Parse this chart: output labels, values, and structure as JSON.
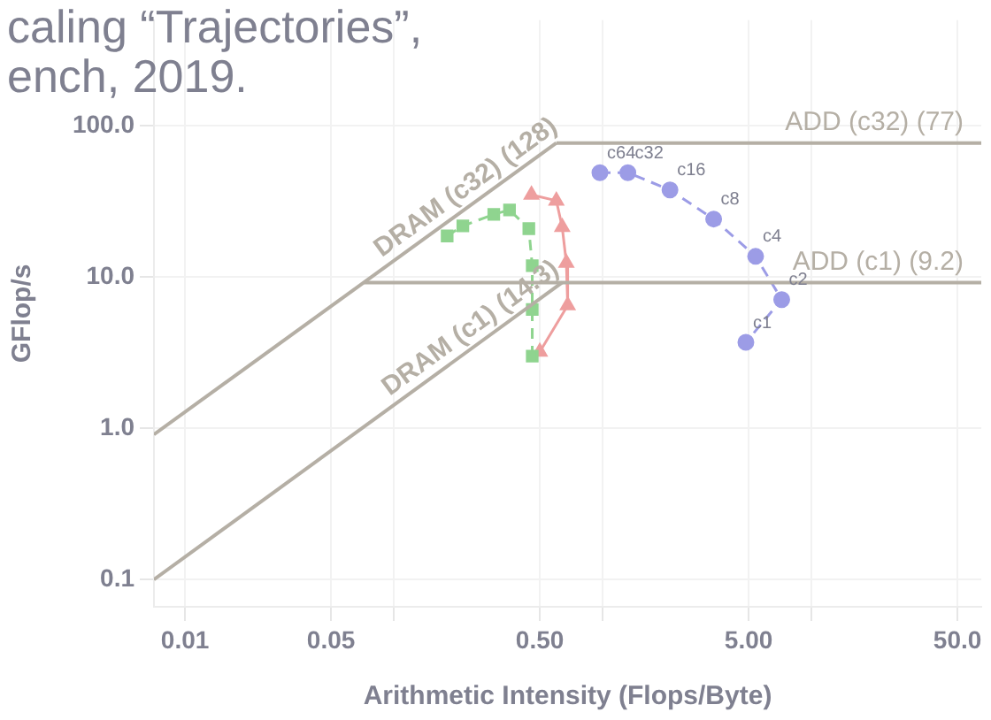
{
  "chart_data": {
    "type": "line",
    "xlabel": "Arithmetic Intensity (Flops/Byte)",
    "ylabel": "GFlop/s",
    "log": "xy",
    "grid": true,
    "legend": false,
    "xlim": [
      0.0071,
      65
    ],
    "ylim": [
      0.066,
      500
    ],
    "xticks": [
      0.01,
      0.05,
      {
        "value": 0.1,
        "label": null
      },
      {
        "value": 0.5,
        "label": "0.50"
      },
      {
        "value": 1,
        "label": null
      },
      {
        "value": 5,
        "label": "5.00"
      },
      {
        "value": 10,
        "label": null
      },
      {
        "value": 50,
        "label": "50.0"
      }
    ],
    "yticks": [
      0.1,
      {
        "value": 1,
        "label": "1.0"
      },
      {
        "value": 10,
        "label": "10.0"
      },
      {
        "value": 100,
        "label": "100.0"
      }
    ],
    "series": [
      {
        "name": "DRAM (c32) (128)",
        "color": "#b5afa5",
        "marker": "none",
        "line_style": "solid",
        "x": [
          0.0071,
          0.6
        ],
        "values": [
          0.91,
          77
        ]
      },
      {
        "name": "ADD (c32) (77)",
        "color": "#b5afa5",
        "marker": "none",
        "line_style": "solid",
        "x": [
          0.6,
          65
        ],
        "values": [
          77,
          77
        ]
      },
      {
        "name": "DRAM (c1) (14.3)",
        "color": "#b5afa5",
        "marker": "none",
        "line_style": "solid",
        "x": [
          0.0071,
          0.64
        ],
        "values": [
          0.1,
          9.2
        ]
      },
      {
        "name": "ADD (c1) (9.2)",
        "color": "#b5afa5",
        "marker": "none",
        "line_style": "solid",
        "x": [
          0.072,
          65
        ],
        "values": [
          9.2,
          9.2
        ]
      },
      {
        "color": "#9c9ce6",
        "marker": "circle",
        "line_style": "dashed",
        "x": [
          0.97,
          1.32,
          2.1,
          3.4,
          5.4,
          7.2,
          4.85
        ],
        "values": [
          49,
          49,
          37.7,
          24.2,
          13.7,
          7.1,
          3.7
        ]
      },
      {
        "color": "#8fd48f",
        "marker": "square",
        "line_style": "dashed",
        "x": [
          0.18,
          0.214,
          0.301,
          0.358,
          0.443,
          0.46,
          0.46,
          0.46
        ],
        "values": [
          18.7,
          21.8,
          26,
          27.8,
          20.9,
          11.9,
          6.1,
          3.0
        ]
      },
      {
        "color": "#ee9e9e",
        "marker": "triangle",
        "line_style": "solid",
        "x": [
          0.456,
          0.6,
          0.64,
          0.67,
          0.68,
          0.5
        ],
        "values": [
          35,
          32,
          21.4,
          12.4,
          6.5,
          3.2
        ]
      }
    ],
    "annotations": [
      "caling “Trajectories”,",
      "ench, 2019.",
      {
        "text": "c64",
        "x": 0.97,
        "y": 49
      },
      {
        "text": "c32",
        "x": 1.32,
        "y": 49
      },
      {
        "text": "c16",
        "x": 2.1,
        "y": 37.7
      },
      {
        "text": "c8",
        "x": 3.4,
        "y": 24.2
      },
      {
        "text": "c4",
        "x": 5.4,
        "y": 13.7
      },
      {
        "text": "c2",
        "x": 7.2,
        "y": 7.1
      },
      {
        "text": "c1",
        "x": 4.85,
        "y": 3.7
      }
    ]
  }
}
